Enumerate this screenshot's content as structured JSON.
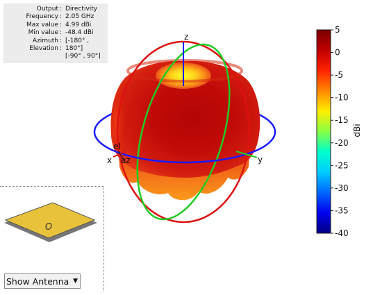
{
  "info_panel": {
    "rows": [
      {
        "key": "Output",
        "value": "Directivity"
      },
      {
        "key": "Frequency",
        "value": "2.05 GHz"
      },
      {
        "key": "Max value",
        "value": "4.99 dBi"
      },
      {
        "key": "Min value",
        "value": "-48.4 dBi"
      },
      {
        "key": "Azimuth",
        "value": "[-180° ,"
      },
      {
        "key": "Elevation",
        "value": "180°]"
      },
      {
        "key": "",
        "value": "[-90° , 90°]"
      }
    ]
  },
  "axes": {
    "z": "z",
    "x": "x",
    "y": "y",
    "el": "el",
    "az": "az"
  },
  "colorbar": {
    "unit": "dBi",
    "min": -40,
    "max": 5,
    "ticks": [
      "5",
      "0",
      "-5",
      "-10",
      "-15",
      "-20",
      "-25",
      "-30",
      "-35",
      "-40"
    ]
  },
  "antenna_view": {
    "label": "O"
  },
  "view_select": {
    "value": "Show Antenna"
  },
  "colors": {
    "x_ring": "#1a1aff",
    "y_ring": "#dd1111",
    "z_ring": "#22cc22"
  }
}
